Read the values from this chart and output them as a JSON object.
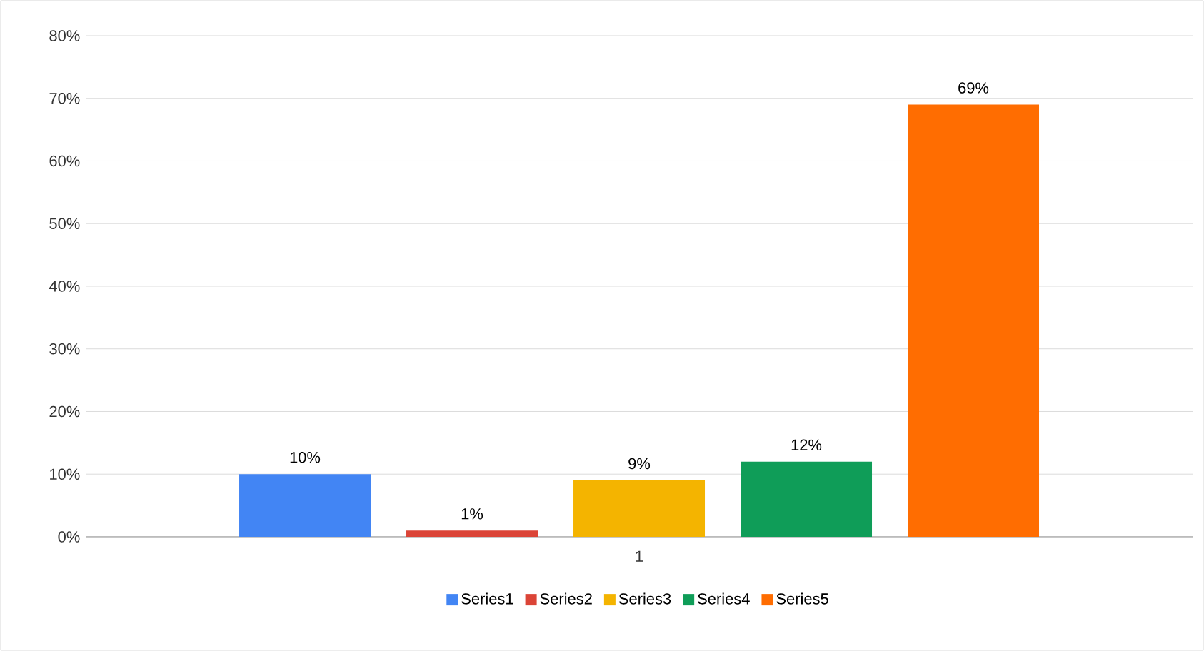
{
  "chart_data": {
    "type": "bar",
    "categories": [
      "1"
    ],
    "series": [
      {
        "name": "Series1",
        "color": "#4285f4",
        "values": [
          10
        ],
        "value_labels": [
          "10%"
        ]
      },
      {
        "name": "Series2",
        "color": "#db4437",
        "values": [
          1
        ],
        "value_labels": [
          "1%"
        ]
      },
      {
        "name": "Series3",
        "color": "#f4b400",
        "values": [
          9
        ],
        "value_labels": [
          "9%"
        ]
      },
      {
        "name": "Series4",
        "color": "#0f9d58",
        "values": [
          12
        ],
        "value_labels": [
          "12%"
        ]
      },
      {
        "name": "Series5",
        "color": "#ff6d01",
        "values": [
          69
        ],
        "value_labels": [
          "69%"
        ]
      }
    ],
    "ylim": [
      0,
      80
    ],
    "yticks": [
      {
        "value": 0,
        "label": "0%"
      },
      {
        "value": 10,
        "label": "10%"
      },
      {
        "value": 20,
        "label": "20%"
      },
      {
        "value": 30,
        "label": "30%"
      },
      {
        "value": 40,
        "label": "40%"
      },
      {
        "value": 50,
        "label": "50%"
      },
      {
        "value": 60,
        "label": "60%"
      },
      {
        "value": 70,
        "label": "70%"
      },
      {
        "value": 80,
        "label": "80%"
      }
    ],
    "grid": "y",
    "legend": "bottom"
  }
}
